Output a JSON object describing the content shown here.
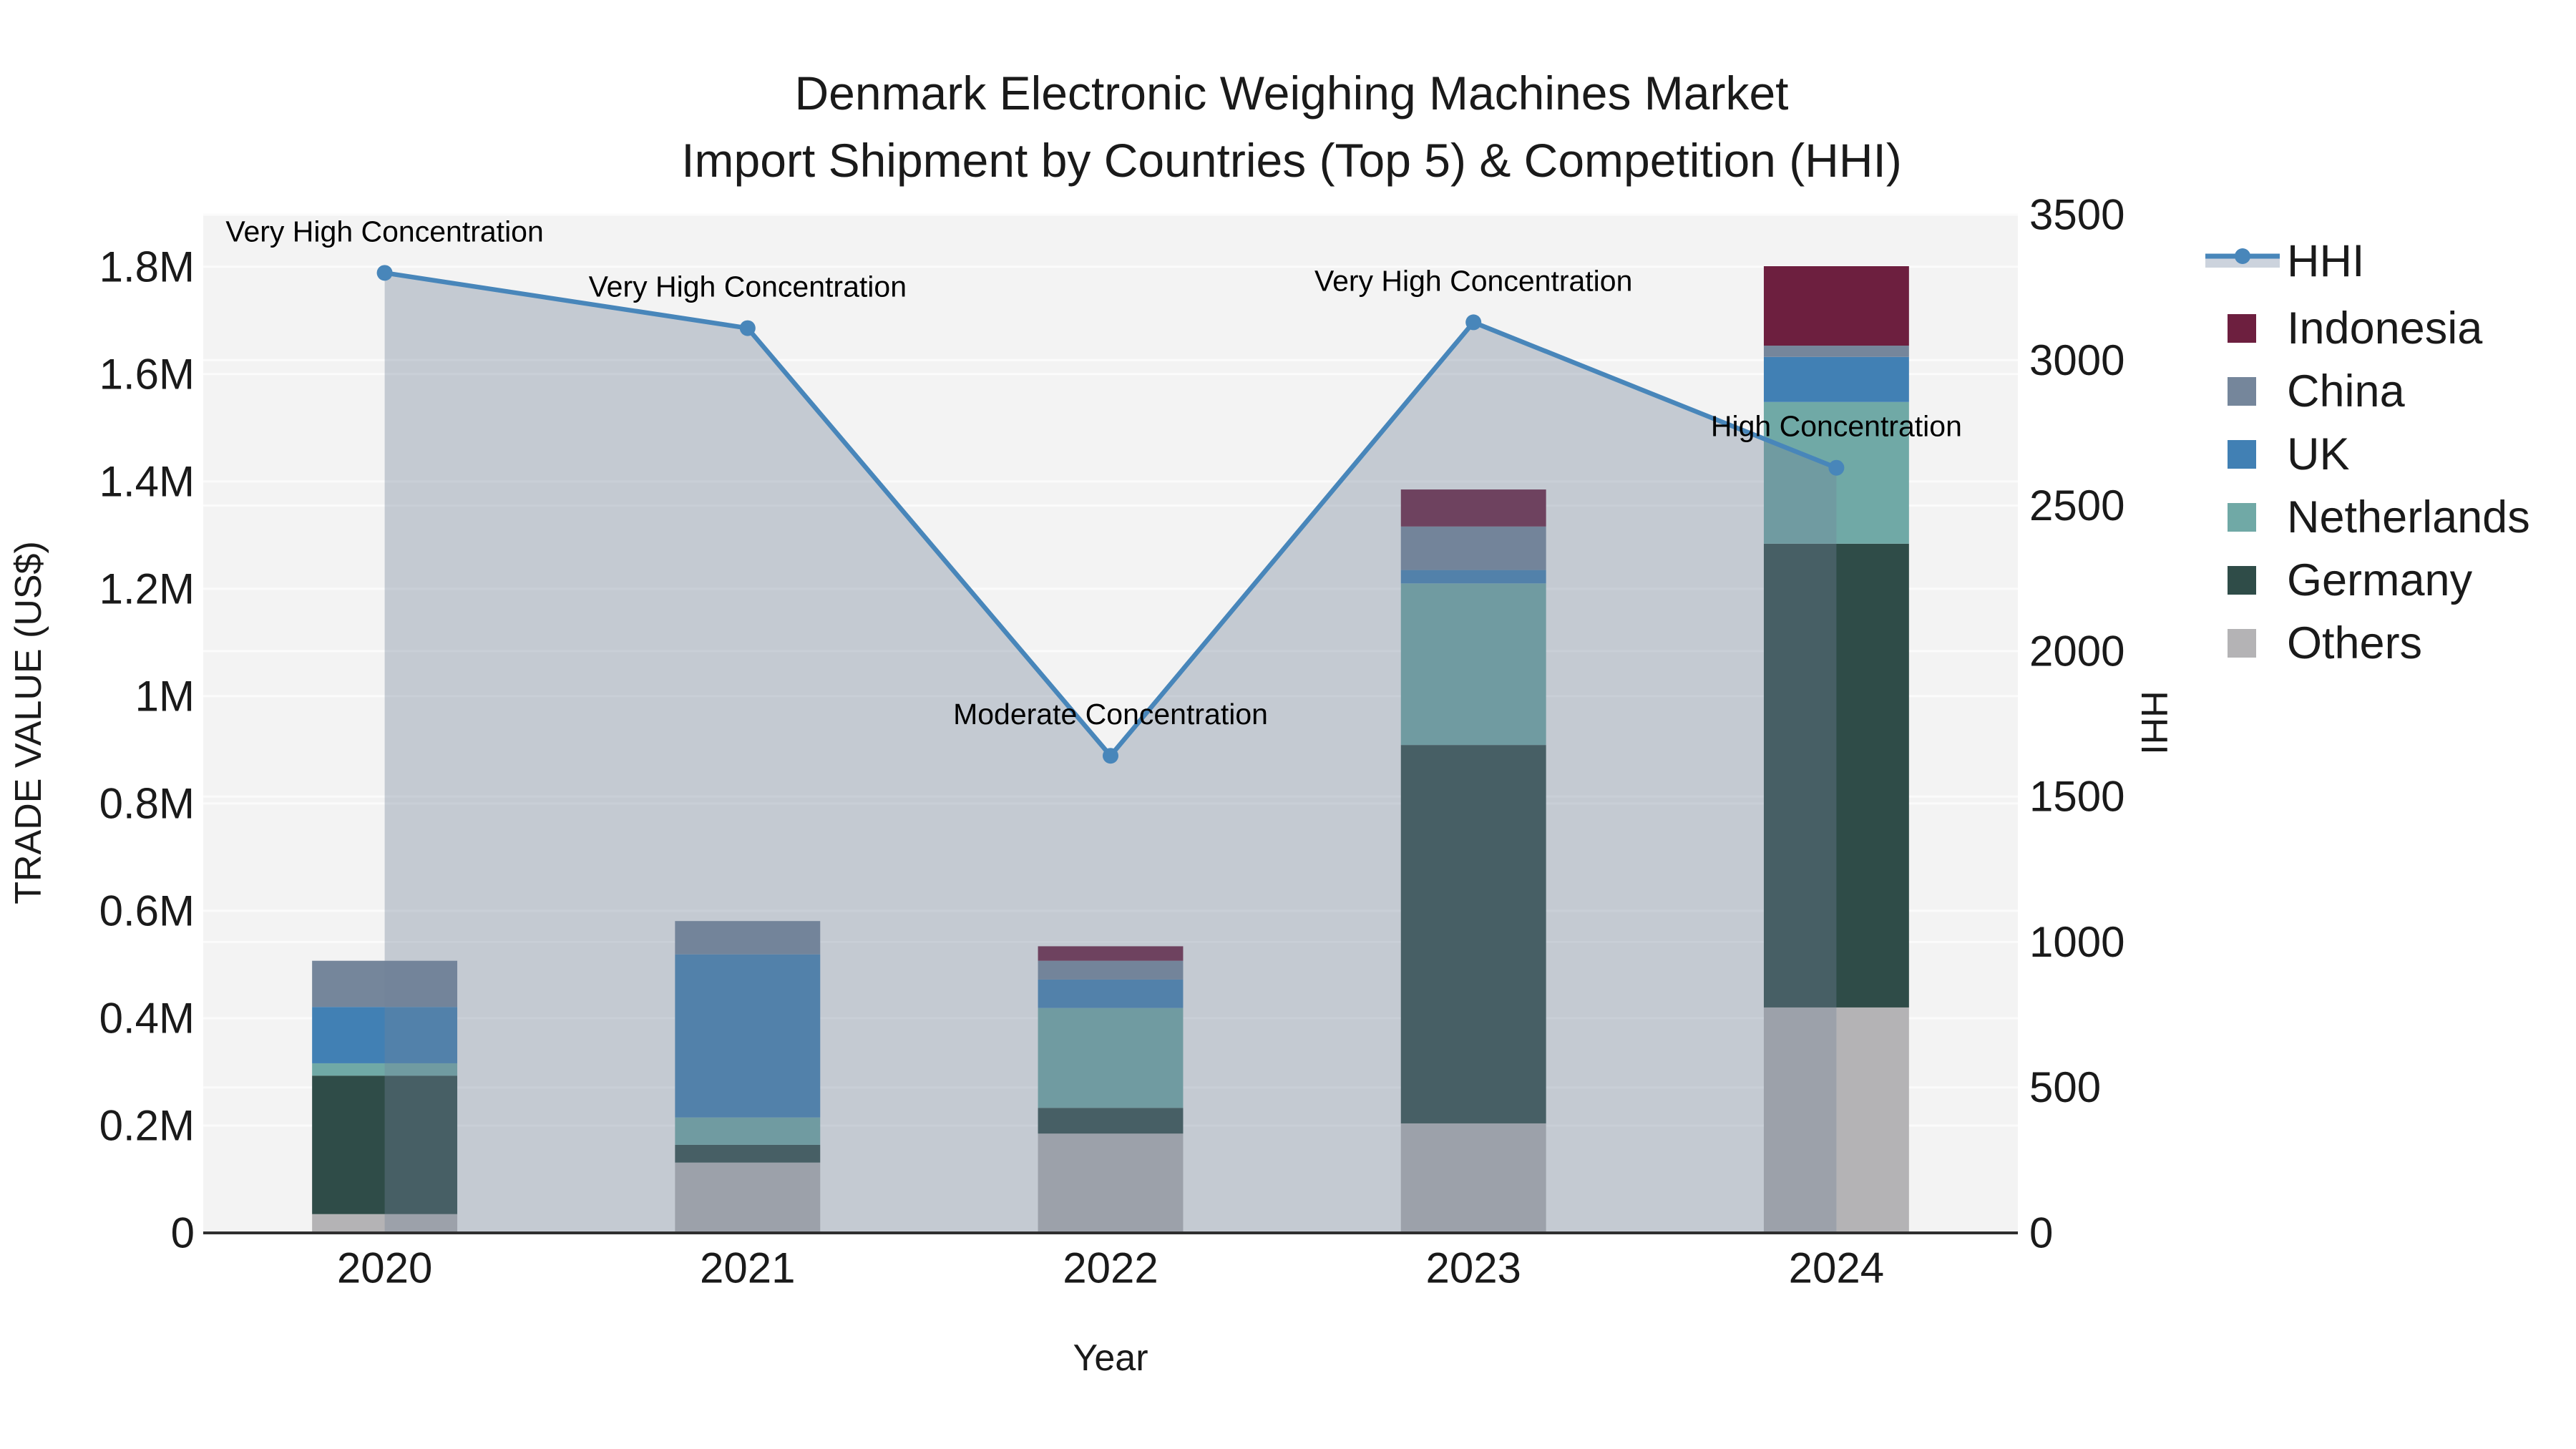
{
  "title": {
    "line1": "Denmark Electronic Weighing Machines Market",
    "line2": "Import Shipment by Countries (Top 5) & Competition (HHI)"
  },
  "axes": {
    "x_title": "Year",
    "y_left_title": "TRADE VALUE (US$)",
    "y_right_title": "HHI",
    "x_tick_labels": [
      "2020",
      "2021",
      "2022",
      "2023",
      "2024"
    ],
    "y_left_tick_labels": [
      "0",
      "0.2M",
      "0.4M",
      "0.6M",
      "0.8M",
      "1M",
      "1.2M",
      "1.4M",
      "1.6M",
      "1.8M"
    ],
    "y_right_tick_labels": [
      "0",
      "500",
      "1000",
      "1500",
      "2000",
      "2500",
      "3000",
      "3500"
    ]
  },
  "legend": {
    "items": [
      {
        "label": "HHI",
        "color": "#4886ba",
        "swatch": "line-area"
      },
      {
        "label": "Indonesia",
        "color": "#6d1f3f",
        "swatch": "square"
      },
      {
        "label": "China",
        "color": "#75869b",
        "swatch": "square"
      },
      {
        "label": "UK",
        "color": "#4180b4",
        "swatch": "square"
      },
      {
        "label": "Netherlands",
        "color": "#70a9a6",
        "swatch": "square"
      },
      {
        "label": "Germany",
        "color": "#2f4c48",
        "swatch": "square"
      },
      {
        "label": "Others",
        "color": "#b4b3b5",
        "swatch": "square"
      }
    ]
  },
  "colors": {
    "plot_bg": "#f3f3f3",
    "gridline": "#fbfbfb",
    "axis_line": "#2f2f2f",
    "hhi_line": "#4886ba",
    "hhi_area_fill": "rgba(115,130,152,0.36)",
    "legend_hhi_band": "#ccd3dd",
    "text": "#1a1a1a"
  },
  "chart_data": {
    "type": "bar",
    "subtype": "stacked-bars-with-line",
    "title": "Denmark Electronic Weighing Machines Market — Import Shipment by Countries (Top 5) & Competition (HHI)",
    "xlabel": "Year",
    "ylabel_left": "TRADE VALUE (US$)",
    "ylabel_right": "HHI",
    "categories": [
      "2020",
      "2021",
      "2022",
      "2023",
      "2024"
    ],
    "y_left_range_usd": [
      0,
      1897000
    ],
    "y_right_range": [
      0,
      3500
    ],
    "y_left_tick_values_usd": [
      0,
      200000,
      400000,
      600000,
      800000,
      1000000,
      1200000,
      1400000,
      1600000,
      1800000
    ],
    "y_right_tick_values": [
      0,
      500,
      1000,
      1500,
      2000,
      2500,
      3000,
      3500
    ],
    "grid": true,
    "legend_position": "right",
    "series": [
      {
        "name": "Others",
        "color": "#b4b3b5",
        "values_usd": [
          35000,
          131000,
          185000,
          204000,
          420000
        ]
      },
      {
        "name": "Germany",
        "color": "#2f4c48",
        "values_usd": [
          258000,
          33000,
          48000,
          705000,
          864000
        ]
      },
      {
        "name": "Netherlands",
        "color": "#70a9a6",
        "values_usd": [
          23000,
          51000,
          186000,
          301000,
          264000
        ]
      },
      {
        "name": "UK",
        "color": "#4180b4",
        "values_usd": [
          105000,
          304000,
          53000,
          25000,
          84000
        ]
      },
      {
        "name": "China",
        "color": "#75869b",
        "values_usd": [
          86000,
          62000,
          35000,
          81000,
          21000
        ]
      },
      {
        "name": "Indonesia",
        "color": "#6d1f3f",
        "values_usd": [
          0,
          0,
          27000,
          69000,
          148000
        ]
      }
    ],
    "bar_totals_usd": [
      507000,
      581000,
      534000,
      1385000,
      1801000
    ],
    "line_series": {
      "name": "HHI",
      "color": "#4886ba",
      "fill": "tozeroy",
      "fill_color": "rgba(115,130,152,0.36)",
      "values": [
        3300,
        3110,
        1640,
        3130,
        2630
      ],
      "annotations": [
        "Very High Concentration",
        "Very High Concentration",
        "Moderate Concentration",
        "Very High Concentration",
        "High Concentration"
      ]
    }
  }
}
